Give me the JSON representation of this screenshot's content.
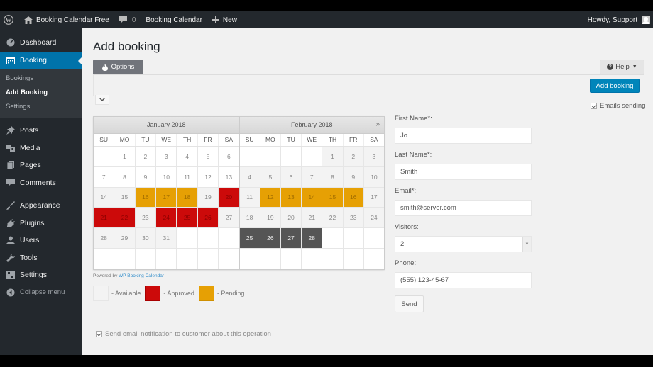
{
  "adminbar": {
    "site_name": "Booking Calendar Free",
    "comments_count": "0",
    "plugin_link": "Booking Calendar",
    "new_label": "New",
    "greeting": "Howdy, Support"
  },
  "sidebar": {
    "items": [
      {
        "label": "Dashboard",
        "icon": "dashboard-icon"
      },
      {
        "label": "Booking",
        "icon": "calendar-icon",
        "active": true
      },
      {
        "label": "Posts",
        "icon": "pin-icon"
      },
      {
        "label": "Media",
        "icon": "media-icon"
      },
      {
        "label": "Pages",
        "icon": "pages-icon"
      },
      {
        "label": "Comments",
        "icon": "comment-icon"
      },
      {
        "label": "Appearance",
        "icon": "brush-icon"
      },
      {
        "label": "Plugins",
        "icon": "plug-icon"
      },
      {
        "label": "Users",
        "icon": "user-icon"
      },
      {
        "label": "Tools",
        "icon": "wrench-icon"
      },
      {
        "label": "Settings",
        "icon": "settings-icon"
      }
    ],
    "submenu": [
      {
        "label": "Bookings"
      },
      {
        "label": "Add Booking",
        "current": true
      },
      {
        "label": "Settings"
      }
    ],
    "collapse_label": "Collapse menu"
  },
  "page": {
    "title": "Add booking",
    "options_tab": "Options",
    "help_label": "Help",
    "add_booking_btn": "Add booking",
    "emails_sending_label": "Emails sending",
    "emails_sending_checked": true
  },
  "calendar": {
    "weekdays": [
      "SU",
      "MO",
      "TU",
      "WE",
      "TH",
      "FR",
      "SA"
    ],
    "next_label": "»",
    "months": [
      {
        "title": "January 2018",
        "weeks": [
          [
            {
              "d": ""
            },
            {
              "d": "1",
              "s": "empty"
            },
            {
              "d": "2",
              "s": "empty"
            },
            {
              "d": "3",
              "s": "empty"
            },
            {
              "d": "4",
              "s": "empty"
            },
            {
              "d": "5",
              "s": "empty"
            },
            {
              "d": "6",
              "s": "empty"
            }
          ],
          [
            {
              "d": "7",
              "s": "empty"
            },
            {
              "d": "8",
              "s": "empty"
            },
            {
              "d": "9",
              "s": "empty"
            },
            {
              "d": "10",
              "s": "empty"
            },
            {
              "d": "11",
              "s": "empty"
            },
            {
              "d": "12",
              "s": "empty"
            },
            {
              "d": "13",
              "s": "empty"
            }
          ],
          [
            {
              "d": "14",
              "s": "avail"
            },
            {
              "d": "15",
              "s": "avail"
            },
            {
              "d": "16",
              "s": "pending"
            },
            {
              "d": "17",
              "s": "pending"
            },
            {
              "d": "18",
              "s": "pending"
            },
            {
              "d": "19",
              "s": "avail"
            },
            {
              "d": "20",
              "s": "approved"
            }
          ],
          [
            {
              "d": "21",
              "s": "approved"
            },
            {
              "d": "22",
              "s": "approved"
            },
            {
              "d": "23",
              "s": "avail"
            },
            {
              "d": "24",
              "s": "approved"
            },
            {
              "d": "25",
              "s": "approved"
            },
            {
              "d": "26",
              "s": "approved"
            },
            {
              "d": "27",
              "s": "avail"
            }
          ],
          [
            {
              "d": "28",
              "s": "avail"
            },
            {
              "d": "29",
              "s": "avail"
            },
            {
              "d": "30",
              "s": "avail"
            },
            {
              "d": "31",
              "s": "avail"
            },
            {
              "d": ""
            },
            {
              "d": ""
            },
            {
              "d": ""
            }
          ],
          [
            {
              "d": ""
            },
            {
              "d": ""
            },
            {
              "d": ""
            },
            {
              "d": ""
            },
            {
              "d": ""
            },
            {
              "d": ""
            },
            {
              "d": ""
            }
          ]
        ]
      },
      {
        "title": "February 2018",
        "weeks": [
          [
            {
              "d": ""
            },
            {
              "d": ""
            },
            {
              "d": ""
            },
            {
              "d": ""
            },
            {
              "d": "1",
              "s": "avail"
            },
            {
              "d": "2",
              "s": "avail"
            },
            {
              "d": "3",
              "s": "avail"
            }
          ],
          [
            {
              "d": "4",
              "s": "avail"
            },
            {
              "d": "5",
              "s": "avail"
            },
            {
              "d": "6",
              "s": "avail"
            },
            {
              "d": "7",
              "s": "avail"
            },
            {
              "d": "8",
              "s": "avail"
            },
            {
              "d": "9",
              "s": "avail"
            },
            {
              "d": "10",
              "s": "avail"
            }
          ],
          [
            {
              "d": "11",
              "s": "avail"
            },
            {
              "d": "12",
              "s": "pending"
            },
            {
              "d": "13",
              "s": "pending"
            },
            {
              "d": "14",
              "s": "pending"
            },
            {
              "d": "15",
              "s": "pending"
            },
            {
              "d": "16",
              "s": "pending"
            },
            {
              "d": "17",
              "s": "avail"
            }
          ],
          [
            {
              "d": "18",
              "s": "avail"
            },
            {
              "d": "19",
              "s": "avail"
            },
            {
              "d": "20",
              "s": "avail"
            },
            {
              "d": "21",
              "s": "avail"
            },
            {
              "d": "22",
              "s": "avail"
            },
            {
              "d": "23",
              "s": "avail"
            },
            {
              "d": "24",
              "s": "avail"
            }
          ],
          [
            {
              "d": "25",
              "s": "selected"
            },
            {
              "d": "26",
              "s": "selected"
            },
            {
              "d": "27",
              "s": "selected"
            },
            {
              "d": "28",
              "s": "selected"
            },
            {
              "d": ""
            },
            {
              "d": ""
            },
            {
              "d": ""
            }
          ],
          [
            {
              "d": ""
            },
            {
              "d": ""
            },
            {
              "d": ""
            },
            {
              "d": ""
            },
            {
              "d": ""
            },
            {
              "d": ""
            },
            {
              "d": ""
            }
          ]
        ]
      }
    ],
    "powered_prefix": "Powered by",
    "powered_link": "WP Booking Calendar",
    "legend": [
      {
        "label": "- Available",
        "type": "available"
      },
      {
        "label": "- Approved",
        "type": "approved"
      },
      {
        "label": "- Pending",
        "type": "pending"
      }
    ],
    "colors": {
      "available": "#f3f3f3",
      "approved": "#cc0a0a",
      "pending": "#e6a004",
      "selected": "#555555"
    }
  },
  "form": {
    "first_name_label": "First Name*:",
    "first_name_value": "Jo",
    "last_name_label": "Last Name*:",
    "last_name_value": "Smith",
    "email_label": "Email*:",
    "email_value": "smith@server.com",
    "visitors_label": "Visitors:",
    "visitors_value": "2",
    "phone_label": "Phone:",
    "phone_value": "(555) 123-45-67",
    "send_label": "Send"
  },
  "notify": {
    "label": "Send email notification to customer about this operation",
    "checked": true
  }
}
